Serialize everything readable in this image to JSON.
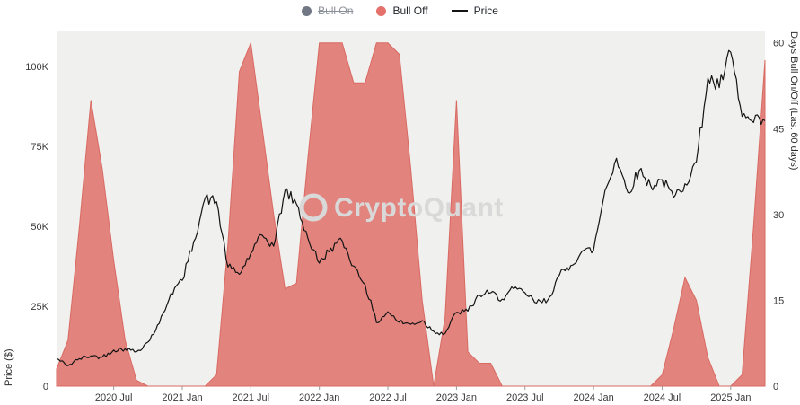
{
  "watermark": "CryptoQuant",
  "legend": {
    "position": "top",
    "items": [
      {
        "label": "Bull On",
        "color": "#717784",
        "marker": "dot",
        "disabled": true
      },
      {
        "label": "Bull Off",
        "color": "#e4716b",
        "marker": "dot",
        "disabled": false
      },
      {
        "label": "Price",
        "color": "#141414",
        "marker": "line",
        "disabled": false
      }
    ]
  },
  "axes": {
    "left_title": "Price ($)",
    "right_title": "Days Bull On/Off (Last 60 days)"
  },
  "chart_data": {
    "type": "mixed",
    "subtypes": [
      "area",
      "line"
    ],
    "title": "",
    "legend_position": "top",
    "grid": false,
    "plot_background": "#f0f0ef",
    "x": [
      "2020-02",
      "2020-03",
      "2020-04",
      "2020-05",
      "2020-06",
      "2020-07",
      "2020-08",
      "2020-09",
      "2020-10",
      "2020-11",
      "2020-12",
      "2021-01",
      "2021-02",
      "2021-03",
      "2021-04",
      "2021-05",
      "2021-06",
      "2021-07",
      "2021-08",
      "2021-09",
      "2021-10",
      "2021-11",
      "2021-12",
      "2022-01",
      "2022-02",
      "2022-03",
      "2022-04",
      "2022-05",
      "2022-06",
      "2022-07",
      "2022-08",
      "2022-09",
      "2022-10",
      "2022-11",
      "2022-12",
      "2023-01",
      "2023-02",
      "2023-03",
      "2023-04",
      "2023-05",
      "2023-06",
      "2023-07",
      "2023-08",
      "2023-09",
      "2023-10",
      "2023-11",
      "2023-12",
      "2024-01",
      "2024-02",
      "2024-03",
      "2024-04",
      "2024-05",
      "2024-06",
      "2024-07",
      "2024-08",
      "2024-09",
      "2024-10",
      "2024-11",
      "2024-12",
      "2025-01",
      "2025-02",
      "2025-03",
      "2025-04"
    ],
    "series": [
      {
        "name": "Bull Off",
        "type": "area",
        "axis": "right",
        "color": "#d96a62",
        "fill": "#e2837d",
        "values": [
          3,
          8,
          28,
          50,
          38,
          22,
          8,
          1,
          0,
          0,
          0,
          0,
          0,
          0,
          2,
          25,
          55,
          60,
          45,
          30,
          17,
          18,
          40,
          60,
          60,
          60,
          53,
          53,
          60,
          60,
          58,
          38,
          15,
          0,
          12,
          50,
          6,
          4,
          4,
          0,
          0,
          0,
          0,
          0,
          0,
          0,
          0,
          0,
          0,
          0,
          0,
          0,
          0,
          2,
          10,
          19,
          15,
          5,
          0,
          0,
          2,
          28,
          57
        ]
      },
      {
        "name": "Price",
        "type": "line",
        "axis": "left",
        "color": "#141414",
        "values": [
          8600,
          6400,
          8600,
          9500,
          9100,
          11300,
          11700,
          10800,
          13800,
          19700,
          29000,
          33100,
          45200,
          58800,
          57700,
          37300,
          35000,
          41500,
          47200,
          43800,
          61300,
          57000,
          46200,
          38500,
          43200,
          45500,
          37600,
          31800,
          19900,
          23300,
          20000,
          19400,
          20500,
          17200,
          16500,
          23100,
          23500,
          28500,
          29200,
          27200,
          30500,
          29200,
          26000,
          27000,
          34700,
          37700,
          42300,
          42600,
          61200,
          71300,
          60600,
          67500,
          62700,
          64600,
          59000,
          63300,
          70200,
          96400,
          93400,
          104500,
          84400,
          82500,
          83000
        ]
      }
    ],
    "left_axis": {
      "label": "Price ($)",
      "max": 111000,
      "min": 0,
      "ticks": [
        {
          "label": "0",
          "value": 0
        },
        {
          "label": "25K",
          "value": 25000
        },
        {
          "label": "50K",
          "value": 50000
        },
        {
          "label": "75K",
          "value": 75000
        },
        {
          "label": "100K",
          "value": 100000
        }
      ]
    },
    "right_axis": {
      "label": "Days Bull On/Off (Last 60 days)",
      "max": 62,
      "min": 0,
      "ticks": [
        {
          "label": "0",
          "value": 0
        },
        {
          "label": "15",
          "value": 15
        },
        {
          "label": "30",
          "value": 30
        },
        {
          "label": "45",
          "value": 45
        },
        {
          "label": "60",
          "value": 60
        }
      ]
    },
    "x_ticks": [
      {
        "label": "2020 Jul",
        "date": "2020-07"
      },
      {
        "label": "2021 Jan",
        "date": "2021-01"
      },
      {
        "label": "2021 Jul",
        "date": "2021-07"
      },
      {
        "label": "2022 Jan",
        "date": "2022-01"
      },
      {
        "label": "2022 Jul",
        "date": "2022-07"
      },
      {
        "label": "2023 Jan",
        "date": "2023-01"
      },
      {
        "label": "2023 Jul",
        "date": "2023-07"
      },
      {
        "label": "2024 Jan",
        "date": "2024-01"
      },
      {
        "label": "2024 Jul",
        "date": "2024-07"
      },
      {
        "label": "2025 Jan",
        "date": "2025-01"
      }
    ]
  }
}
